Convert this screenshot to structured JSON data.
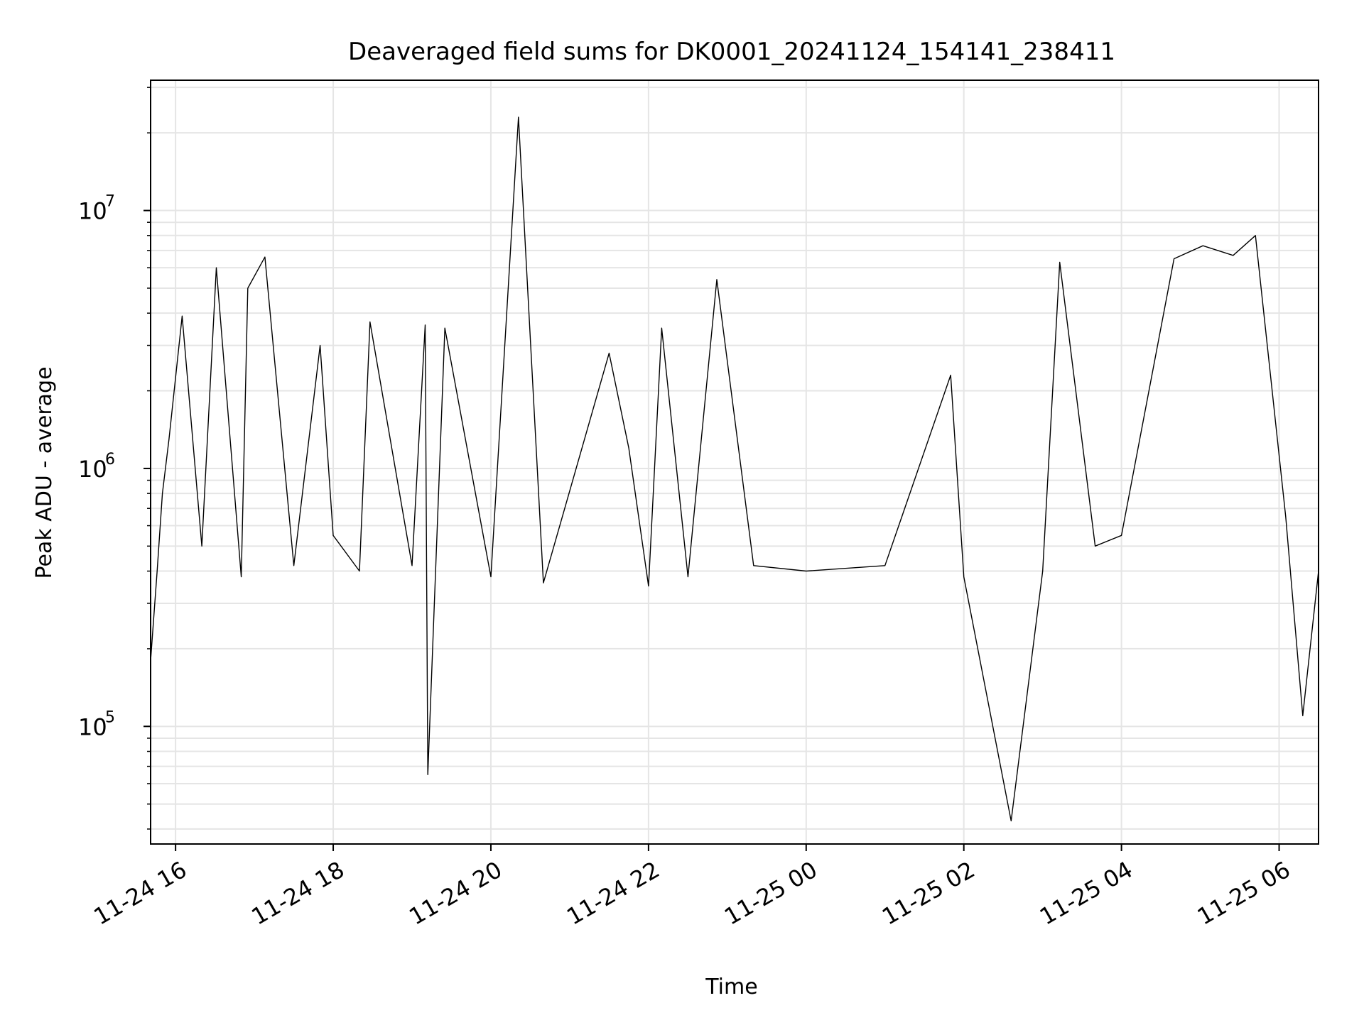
{
  "chart_data": {
    "type": "line",
    "title": "Deaveraged field sums for DK0001_20241124_154141_238411",
    "xlabel": "Time",
    "ylabel": "Peak ADU - average",
    "y_scale": "log",
    "grid": true,
    "legend": "none",
    "line_color": "#000000",
    "grid_color": "#e5e5e5",
    "xlim": [
      "2024-11-24 15:41",
      "2024-11-25 06:30"
    ],
    "ylim": [
      35000,
      32000000
    ],
    "x_ticks": [
      {
        "time": "2024-11-24 16:00",
        "label": "11-24 16"
      },
      {
        "time": "2024-11-24 18:00",
        "label": "11-24 18"
      },
      {
        "time": "2024-11-24 20:00",
        "label": "11-24 20"
      },
      {
        "time": "2024-11-24 22:00",
        "label": "11-24 22"
      },
      {
        "time": "2024-11-25 00:00",
        "label": "11-25 00"
      },
      {
        "time": "2024-11-25 02:00",
        "label": "11-25 02"
      },
      {
        "time": "2024-11-25 04:00",
        "label": "11-25 04"
      },
      {
        "time": "2024-11-25 06:00",
        "label": "11-25 06"
      }
    ],
    "y_ticks": [
      {
        "value": 100000,
        "base": "10",
        "exp": "5"
      },
      {
        "value": 1000000,
        "base": "10",
        "exp": "6"
      },
      {
        "value": 10000000,
        "base": "10",
        "exp": "7"
      }
    ],
    "series": [
      {
        "points": [
          [
            "2024-11-24 15:41",
            180000
          ],
          [
            "2024-11-24 15:46",
            400000
          ],
          [
            "2024-11-24 15:50",
            800000
          ],
          [
            "2024-11-24 15:55",
            1300000
          ],
          [
            "2024-11-24 16:05",
            3900000
          ],
          [
            "2024-11-24 16:20",
            500000
          ],
          [
            "2024-11-24 16:31",
            6000000
          ],
          [
            "2024-11-24 16:50",
            380000
          ],
          [
            "2024-11-24 16:55",
            5000000
          ],
          [
            "2024-11-24 17:08",
            6600000
          ],
          [
            "2024-11-24 17:30",
            420000
          ],
          [
            "2024-11-24 17:50",
            3000000
          ],
          [
            "2024-11-24 18:00",
            550000
          ],
          [
            "2024-11-24 18:20",
            400000
          ],
          [
            "2024-11-24 18:28",
            3700000
          ],
          [
            "2024-11-24 19:00",
            420000
          ],
          [
            "2024-11-24 19:10",
            3600000
          ],
          [
            "2024-11-24 19:12",
            65000
          ],
          [
            "2024-11-24 19:25",
            3500000
          ],
          [
            "2024-11-24 20:00",
            380000
          ],
          [
            "2024-11-24 20:21",
            23000000
          ],
          [
            "2024-11-24 20:40",
            360000
          ],
          [
            "2024-11-24 21:30",
            2800000
          ],
          [
            "2024-11-24 21:45",
            1200000
          ],
          [
            "2024-11-24 22:00",
            350000
          ],
          [
            "2024-11-24 22:10",
            3500000
          ],
          [
            "2024-11-24 22:30",
            380000
          ],
          [
            "2024-11-24 22:52",
            5400000
          ],
          [
            "2024-11-24 23:20",
            420000
          ],
          [
            "2024-11-25 00:00",
            400000
          ],
          [
            "2024-11-25 01:00",
            420000
          ],
          [
            "2024-11-25 01:50",
            2300000
          ],
          [
            "2024-11-25 02:00",
            380000
          ],
          [
            "2024-11-25 02:36",
            43000
          ],
          [
            "2024-11-25 03:00",
            400000
          ],
          [
            "2024-11-25 03:13",
            6300000
          ],
          [
            "2024-11-25 03:40",
            500000
          ],
          [
            "2024-11-25 04:00",
            550000
          ],
          [
            "2024-11-25 04:40",
            6500000
          ],
          [
            "2024-11-25 05:02",
            7300000
          ],
          [
            "2024-11-25 05:25",
            6700000
          ],
          [
            "2024-11-25 05:42",
            8000000
          ],
          [
            "2024-11-25 06:05",
            650000
          ],
          [
            "2024-11-25 06:18",
            110000
          ],
          [
            "2024-11-25 06:30",
            400000
          ]
        ]
      }
    ]
  }
}
